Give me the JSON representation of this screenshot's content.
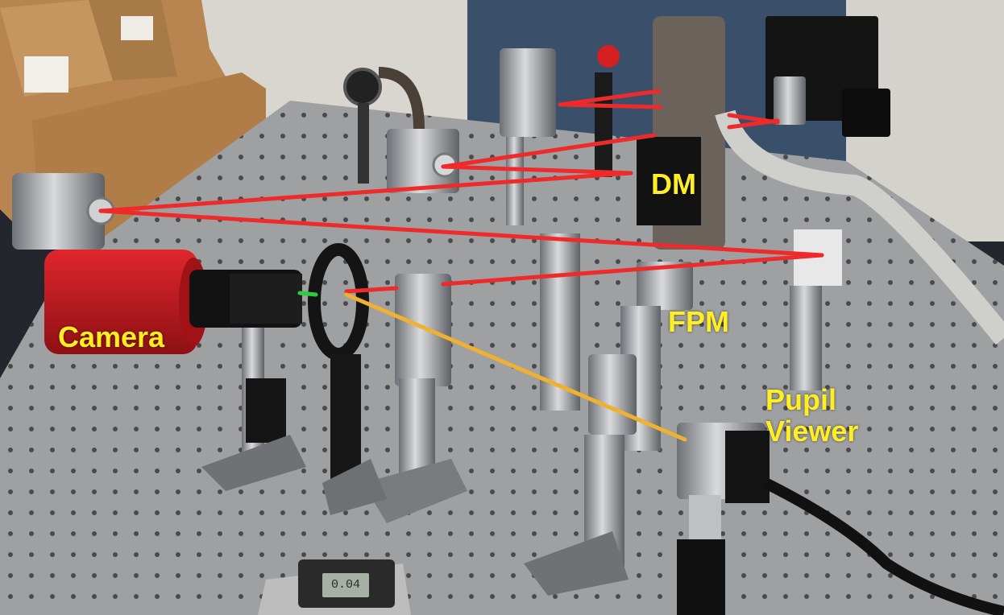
{
  "labels": {
    "dm": "DM",
    "camera": "Camera",
    "fpm": "FPM",
    "pupil_viewer_line1": "Pupil",
    "pupil_viewer_line2": "Viewer"
  },
  "caliper_readout": "0.04",
  "colors": {
    "label": "#ffee22",
    "beam_main": "#ee2a2a",
    "beam_pupil": "#f0b030",
    "beam_camera": "#2ecc40",
    "camera_body": "#c4161c",
    "table": "#9fa0a2",
    "holes": "#3c3c40"
  }
}
